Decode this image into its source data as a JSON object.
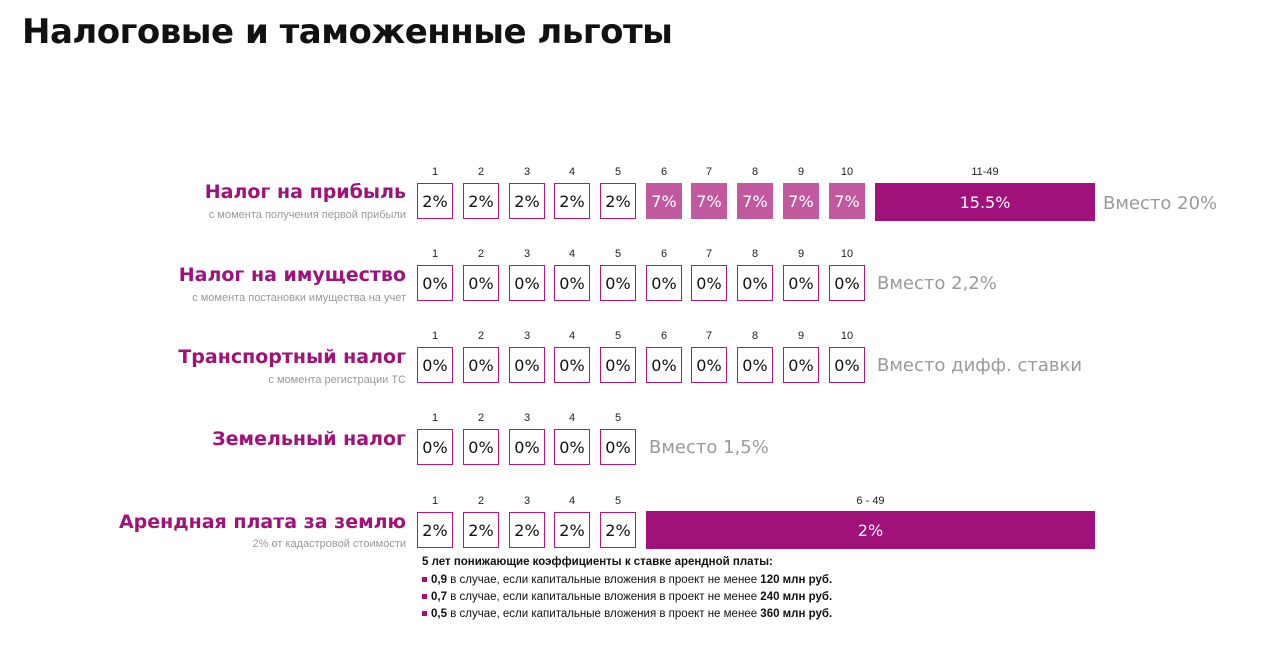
{
  "title": "Налоговые и таможенные льготы",
  "rows": [
    {
      "title": "Налог на прибыль",
      "subtitle": "с момента получения первой прибыли",
      "years": [
        "1",
        "2",
        "3",
        "4",
        "5",
        "6",
        "7",
        "8",
        "9",
        "10"
      ],
      "cells": [
        "2%",
        "2%",
        "2%",
        "2%",
        "2%",
        "7%",
        "7%",
        "7%",
        "7%",
        "7%"
      ],
      "bar_label": "11-49",
      "bar_value": "15.5%",
      "instead": "Вместо 20%"
    },
    {
      "title": "Налог на имущество",
      "subtitle": "с момента постановки имущества на учет",
      "years": [
        "1",
        "2",
        "3",
        "4",
        "5",
        "6",
        "7",
        "8",
        "9",
        "10"
      ],
      "cells": [
        "0%",
        "0%",
        "0%",
        "0%",
        "0%",
        "0%",
        "0%",
        "0%",
        "0%",
        "0%"
      ],
      "instead": "Вместо 2,2%"
    },
    {
      "title": "Транспортный налог",
      "subtitle": "с момента регистрации ТС",
      "years": [
        "1",
        "2",
        "3",
        "4",
        "5",
        "6",
        "7",
        "8",
        "9",
        "10"
      ],
      "cells": [
        "0%",
        "0%",
        "0%",
        "0%",
        "0%",
        "0%",
        "0%",
        "0%",
        "0%",
        "0%"
      ],
      "instead": "Вместо дифф. ставки"
    },
    {
      "title": "Земельный налог",
      "subtitle": "",
      "years": [
        "1",
        "2",
        "3",
        "4",
        "5"
      ],
      "cells": [
        "0%",
        "0%",
        "0%",
        "0%",
        "0%"
      ],
      "instead": "Вместо 1,5%"
    },
    {
      "title": "Арендная плата за землю",
      "subtitle": "2% от кадастровой стоимости",
      "years": [
        "1",
        "2",
        "3",
        "4",
        "5"
      ],
      "cells": [
        "2%",
        "2%",
        "2%",
        "2%",
        "2%"
      ],
      "bar_label": "6 - 49",
      "bar_value": "2%"
    }
  ],
  "notes": {
    "title": "5 лет понижающие коэффициенты к ставке арендной платы:",
    "items": [
      {
        "coef": "0,9",
        "text": " в случае, если капитальные вложения в проект не менее ",
        "amount": "120 млн руб."
      },
      {
        "coef": "0,7",
        "text": " в случае, если капитальные вложения в проект не менее ",
        "amount": "240 млн руб."
      },
      {
        "coef": "0,5",
        "text": " в случае, если капитальные вложения в проект не менее ",
        "amount": "360 млн руб."
      }
    ]
  },
  "colors": {
    "accent": "#a0127a",
    "mid": "#c2589e",
    "muted": "#9a9a9a"
  }
}
